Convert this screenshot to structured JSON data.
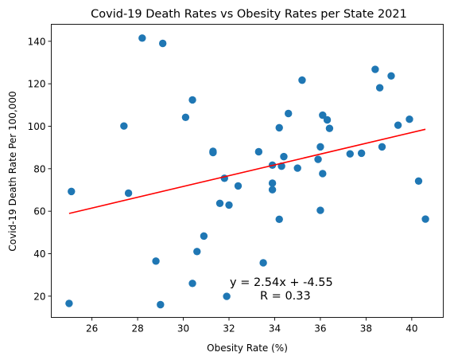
{
  "chart_data": {
    "type": "scatter",
    "title": "Covid-19 Death Rates vs Obesity Rates per State 2021",
    "xlabel": "Obesity Rate (%)",
    "ylabel": "Covid-19 Death Rate Per 100,000",
    "xlim": [
      24.22,
      41.38
    ],
    "ylim": [
      10.0,
      148.0
    ],
    "xticks": [
      26,
      28,
      30,
      32,
      34,
      36,
      38,
      40
    ],
    "yticks": [
      20,
      40,
      60,
      80,
      100,
      120,
      140
    ],
    "grid": false,
    "legend": "none",
    "point_color": "#1f77b4",
    "line_color": "#ff0000",
    "series": [
      {
        "points": [
          [
            25.0,
            16.6
          ],
          [
            25.1,
            69.3
          ],
          [
            27.4,
            100.1
          ],
          [
            27.6,
            68.5
          ],
          [
            28.2,
            141.5
          ],
          [
            28.8,
            36.5
          ],
          [
            29.0,
            16.0
          ],
          [
            29.1,
            139.0
          ],
          [
            30.1,
            104.2
          ],
          [
            30.4,
            112.4
          ],
          [
            30.4,
            26.0
          ],
          [
            30.6,
            41.0
          ],
          [
            30.9,
            48.3
          ],
          [
            31.3,
            88.2
          ],
          [
            31.3,
            87.6
          ],
          [
            31.6,
            63.7
          ],
          [
            31.8,
            75.5
          ],
          [
            31.9,
            19.9
          ],
          [
            32.0,
            62.9
          ],
          [
            32.4,
            71.9
          ],
          [
            33.3,
            88.0
          ],
          [
            33.5,
            35.7
          ],
          [
            33.9,
            81.7
          ],
          [
            33.9,
            73.2
          ],
          [
            33.9,
            70.1
          ],
          [
            34.2,
            99.3
          ],
          [
            34.2,
            56.2
          ],
          [
            34.3,
            81.2
          ],
          [
            34.4,
            85.7
          ],
          [
            34.6,
            106.0
          ],
          [
            35.0,
            80.3
          ],
          [
            35.2,
            121.7
          ],
          [
            35.9,
            84.4
          ],
          [
            36.0,
            90.3
          ],
          [
            36.0,
            60.4
          ],
          [
            36.1,
            105.2
          ],
          [
            36.1,
            77.7
          ],
          [
            36.3,
            103.0
          ],
          [
            36.4,
            99.0
          ],
          [
            37.3,
            87.0
          ],
          [
            37.8,
            87.3
          ],
          [
            38.4,
            126.8
          ],
          [
            38.6,
            118.1
          ],
          [
            38.7,
            90.3
          ],
          [
            39.1,
            123.7
          ],
          [
            39.4,
            100.5
          ],
          [
            39.9,
            103.3
          ],
          [
            40.3,
            74.2
          ],
          [
            40.6,
            56.3
          ]
        ]
      }
    ],
    "regression": {
      "slope": 2.54,
      "intercept": -4.55,
      "x_range": [
        25.0,
        40.6
      ],
      "equation_text": "y = 2.54x + -4.55",
      "r_text": "R = 0.33"
    }
  }
}
